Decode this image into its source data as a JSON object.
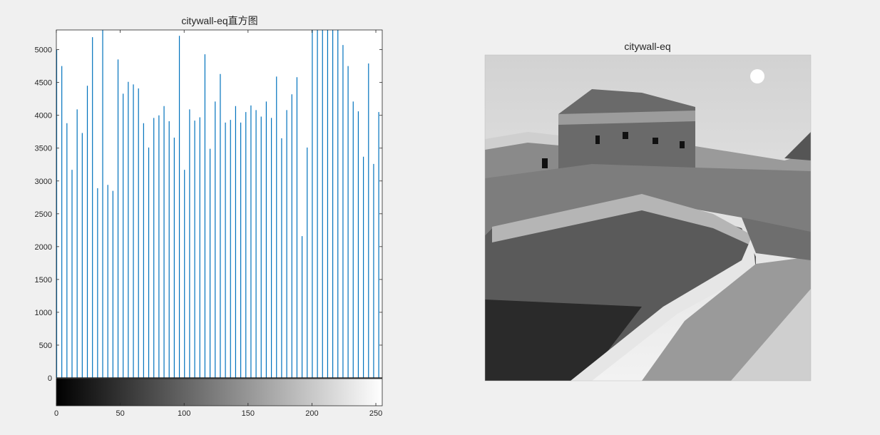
{
  "colors": {
    "figure_bg": "#f0f0f0",
    "axes_bg": "#ffffff",
    "bar": "#0072bd",
    "axis": "#262626"
  },
  "chart_data": [
    {
      "type": "bar",
      "title": "citywall-eq直方图",
      "xlabel": "",
      "ylabel": "",
      "xlim": [
        0,
        255
      ],
      "ylim": [
        0,
        5300
      ],
      "x_ticks": [
        "0",
        "50",
        "100",
        "150",
        "200",
        "250"
      ],
      "y_ticks": [
        "0",
        "500",
        "1000",
        "1500",
        "2000",
        "2500",
        "3000",
        "3500",
        "4000",
        "4500",
        "5000"
      ],
      "grid": false,
      "colorbar": "grayscale gradient 0–255 below x-axis",
      "x": [
        0,
        4,
        8,
        12,
        16,
        20,
        24,
        28,
        32,
        36,
        40,
        44,
        48,
        52,
        56,
        60,
        64,
        68,
        72,
        76,
        80,
        84,
        88,
        92,
        96,
        100,
        104,
        108,
        112,
        116,
        120,
        124,
        128,
        132,
        136,
        140,
        144,
        148,
        152,
        156,
        160,
        164,
        168,
        172,
        176,
        180,
        184,
        188,
        192,
        196,
        200,
        204,
        208,
        212,
        216,
        220,
        224,
        228,
        232,
        236,
        240,
        244,
        248,
        252
      ],
      "values": [
        5000,
        4750,
        3880,
        3170,
        4090,
        3730,
        4450,
        5190,
        2890,
        5300,
        2940,
        2850,
        4850,
        4330,
        4510,
        4470,
        4410,
        3880,
        3510,
        3960,
        4000,
        4140,
        3910,
        3660,
        5210,
        3170,
        4090,
        3920,
        3970,
        4930,
        3490,
        4210,
        4630,
        3890,
        3930,
        4140,
        3890,
        4050,
        4150,
        4080,
        3980,
        4210,
        3960,
        4590,
        3650,
        4080,
        4320,
        4580,
        2160,
        3510,
        5300,
        5300,
        5300,
        5300,
        5300,
        5300,
        5070,
        4750,
        4210,
        4060,
        3370,
        4790,
        3260,
        4050
      ]
    },
    {
      "type": "image",
      "title": "citywall-eq",
      "description_hint": "grayscale equalized photo of the Great Wall with watchtower"
    }
  ]
}
